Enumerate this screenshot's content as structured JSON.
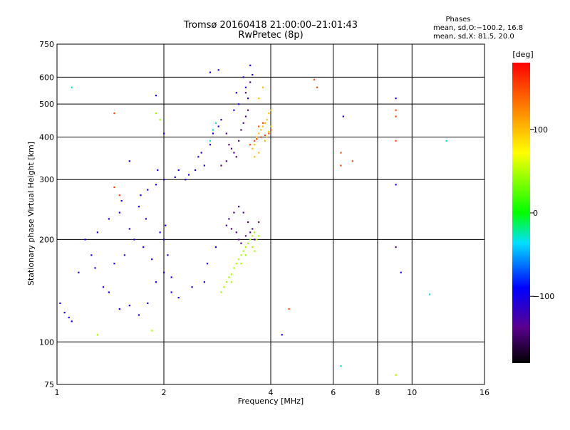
{
  "chart_data": {
    "type": "scatter",
    "title": "Tromsø 20160418 21:00:00–21:01:43",
    "subtitle": "RwPretec (8p)",
    "xlabel": "Frequency [MHz]",
    "ylabel": "Stationary phase Virtual Height [km]",
    "x_scale": "log",
    "y_scale": "log",
    "xlim": [
      1,
      16
    ],
    "ylim": [
      75,
      750
    ],
    "x_ticks": [
      1,
      2,
      4,
      6,
      8,
      10,
      16
    ],
    "x_tick_labels": [
      "1",
      "2",
      "4",
      "6",
      "8",
      "10",
      "16"
    ],
    "y_ticks": [
      75,
      100,
      200,
      300,
      400,
      500,
      600,
      750
    ],
    "y_tick_labels": [
      "75",
      "100",
      "200",
      "300",
      "400",
      "500",
      "600",
      "750"
    ],
    "grid_x": [
      2,
      4,
      6,
      8,
      10
    ],
    "grid_y": [
      100,
      200,
      300,
      400,
      500,
      600
    ],
    "legend": {
      "heading": "Phases",
      "line1": "mean, sd,O:−100.2, 16.8",
      "line2": "mean, sd,X:  81.5, 20.0"
    },
    "colorbar": {
      "label": "[deg]",
      "range": [
        -180,
        180
      ],
      "ticks": [
        100,
        0,
        -100
      ],
      "tick_labels": [
        "100",
        "0",
        "−100"
      ]
    },
    "series": [
      {
        "phase_deg": -100,
        "points": [
          [
            1.02,
            130
          ],
          [
            1.05,
            122
          ],
          [
            1.08,
            118
          ],
          [
            1.1,
            115
          ],
          [
            1.15,
            160
          ],
          [
            1.2,
            200
          ],
          [
            1.25,
            180
          ],
          [
            1.28,
            165
          ],
          [
            1.3,
            210
          ],
          [
            1.35,
            145
          ],
          [
            1.4,
            230
          ],
          [
            1.45,
            170
          ],
          [
            1.5,
            240
          ],
          [
            1.52,
            260
          ],
          [
            1.55,
            180
          ],
          [
            1.6,
            215
          ],
          [
            1.65,
            200
          ],
          [
            1.7,
            250
          ],
          [
            1.72,
            270
          ],
          [
            1.75,
            190
          ],
          [
            1.78,
            230
          ],
          [
            1.8,
            280
          ],
          [
            1.85,
            175
          ],
          [
            1.9,
            290
          ],
          [
            1.92,
            320
          ],
          [
            1.95,
            210
          ],
          [
            2.0,
            300
          ],
          [
            2.02,
            220
          ],
          [
            2.05,
            180
          ],
          [
            2.1,
            155
          ],
          [
            2.15,
            305
          ],
          [
            2.2,
            320
          ],
          [
            2.3,
            300
          ],
          [
            2.35,
            310
          ],
          [
            2.45,
            320
          ],
          [
            2.5,
            350
          ],
          [
            2.55,
            360
          ],
          [
            2.6,
            330
          ],
          [
            2.65,
            170
          ],
          [
            2.7,
            380
          ],
          [
            2.75,
            410
          ],
          [
            2.8,
            190
          ],
          [
            2.85,
            430
          ],
          [
            2.9,
            450
          ],
          [
            2.7,
            620
          ],
          [
            2.85,
            630
          ],
          [
            3.2,
            540
          ],
          [
            3.35,
            600
          ],
          [
            3.4,
            560
          ],
          [
            3.45,
            520
          ],
          [
            3.5,
            650
          ],
          [
            3.55,
            610
          ],
          [
            3.15,
            480
          ],
          [
            3.25,
            500
          ],
          [
            1.4,
            140
          ],
          [
            1.5,
            125
          ],
          [
            1.6,
            128
          ],
          [
            1.7,
            120
          ],
          [
            1.8,
            130
          ],
          [
            1.9,
            150
          ],
          [
            2.0,
            160
          ],
          [
            2.1,
            140
          ],
          [
            2.2,
            135
          ],
          [
            2.4,
            145
          ],
          [
            2.6,
            150
          ],
          [
            1.9,
            530
          ],
          [
            2.0,
            410
          ],
          [
            4.3,
            105
          ],
          [
            6.4,
            460
          ],
          [
            9.0,
            290
          ],
          [
            9.0,
            520
          ],
          [
            9.3,
            160
          ],
          [
            2.0,
            200
          ],
          [
            1.6,
            340
          ]
        ]
      },
      {
        "phase_deg": -140,
        "points": [
          [
            3.0,
            410
          ],
          [
            3.05,
            380
          ],
          [
            3.1,
            370
          ],
          [
            3.15,
            360
          ],
          [
            3.2,
            350
          ],
          [
            3.25,
            390
          ],
          [
            3.3,
            420
          ],
          [
            3.35,
            440
          ],
          [
            3.4,
            460
          ],
          [
            3.45,
            480
          ],
          [
            3.0,
            220
          ],
          [
            3.1,
            215
          ],
          [
            3.2,
            210
          ],
          [
            3.25,
            200
          ],
          [
            3.3,
            195
          ],
          [
            3.4,
            205
          ],
          [
            3.5,
            210
          ],
          [
            3.6,
            200
          ],
          [
            3.05,
            230
          ],
          [
            3.15,
            240
          ],
          [
            3.25,
            250
          ],
          [
            3.35,
            240
          ],
          [
            3.45,
            225
          ],
          [
            3.55,
            215
          ],
          [
            3.7,
            225
          ],
          [
            2.9,
            330
          ],
          [
            3.0,
            340
          ],
          [
            3.4,
            540
          ],
          [
            3.5,
            580
          ],
          [
            9.0,
            190
          ]
        ]
      },
      {
        "phase_deg": 100,
        "points": [
          [
            3.55,
            370
          ],
          [
            3.6,
            380
          ],
          [
            3.65,
            400
          ],
          [
            3.7,
            410
          ],
          [
            3.75,
            420
          ],
          [
            3.8,
            430
          ],
          [
            3.85,
            440
          ],
          [
            3.9,
            450
          ],
          [
            3.95,
            470
          ],
          [
            4.0,
            480
          ],
          [
            3.7,
            520
          ],
          [
            3.8,
            560
          ],
          [
            3.6,
            350
          ],
          [
            3.7,
            360
          ],
          [
            3.85,
            390
          ],
          [
            3.9,
            400
          ],
          [
            3.95,
            415
          ],
          [
            4.0,
            430
          ]
        ]
      },
      {
        "phase_deg": 150,
        "points": [
          [
            3.5,
            380
          ],
          [
            3.6,
            390
          ],
          [
            3.65,
            395
          ],
          [
            3.75,
            400
          ],
          [
            3.85,
            405
          ],
          [
            3.95,
            410
          ],
          [
            4.0,
            420
          ],
          [
            3.7,
            430
          ],
          [
            3.8,
            440
          ],
          [
            5.3,
            590
          ],
          [
            5.4,
            560
          ],
          [
            6.3,
            360
          ],
          [
            6.3,
            330
          ],
          [
            6.8,
            340
          ],
          [
            9.0,
            480
          ],
          [
            9.0,
            390
          ],
          [
            9.0,
            460
          ],
          [
            4.5,
            125
          ],
          [
            1.45,
            470
          ],
          [
            1.5,
            270
          ],
          [
            1.45,
            285
          ]
        ]
      },
      {
        "phase_deg": 45,
        "points": [
          [
            2.95,
            145
          ],
          [
            3.0,
            150
          ],
          [
            3.05,
            155
          ],
          [
            3.1,
            158
          ],
          [
            3.15,
            165
          ],
          [
            3.2,
            170
          ],
          [
            3.25,
            175
          ],
          [
            3.3,
            180
          ],
          [
            3.35,
            185
          ],
          [
            3.4,
            190
          ],
          [
            3.45,
            195
          ],
          [
            3.5,
            200
          ],
          [
            3.55,
            205
          ],
          [
            3.6,
            210
          ],
          [
            3.65,
            200
          ],
          [
            3.7,
            205
          ],
          [
            2.9,
            140
          ],
          [
            3.1,
            150
          ],
          [
            3.3,
            170
          ],
          [
            3.4,
            180
          ],
          [
            3.55,
            190
          ],
          [
            3.6,
            185
          ],
          [
            1.3,
            105
          ],
          [
            1.85,
            108
          ],
          [
            1.9,
            470
          ],
          [
            1.95,
            450
          ],
          [
            9.0,
            80
          ]
        ]
      },
      {
        "phase_deg": -30,
        "points": [
          [
            6.3,
            85
          ],
          [
            11.2,
            138
          ],
          [
            12.5,
            390
          ],
          [
            1.1,
            560
          ],
          [
            2.7,
            390
          ],
          [
            2.75,
            420
          ],
          [
            2.8,
            440
          ]
        ]
      }
    ]
  }
}
